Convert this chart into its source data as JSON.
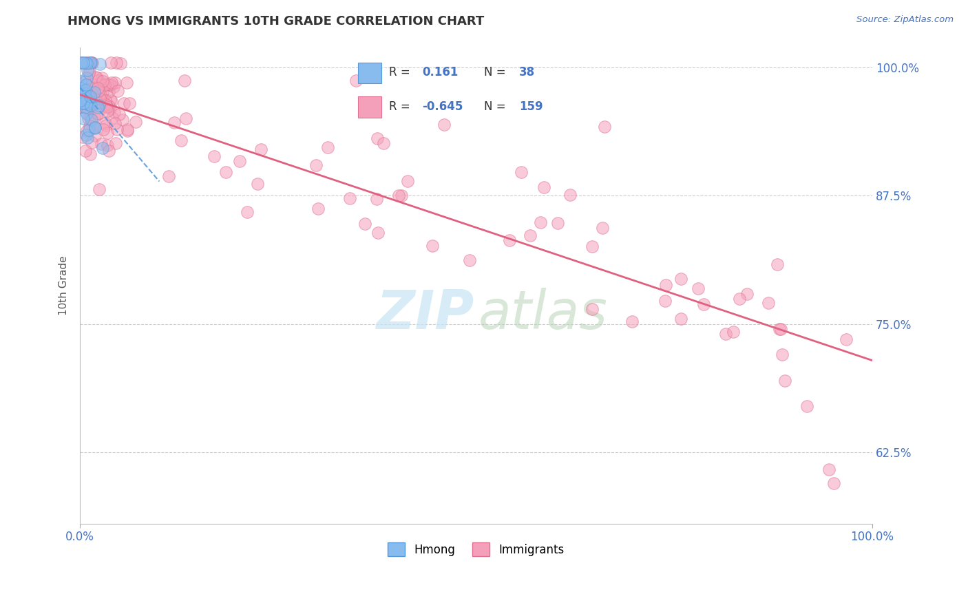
{
  "title": "HMONG VS IMMIGRANTS 10TH GRADE CORRELATION CHART",
  "source": "Source: ZipAtlas.com",
  "ylabel": "10th Grade",
  "ytick_labels": [
    "62.5%",
    "75.0%",
    "87.5%",
    "100.0%"
  ],
  "ytick_values": [
    0.625,
    0.75,
    0.875,
    1.0
  ],
  "hmong_color": "#88BBEE",
  "hmong_edge_color": "#5599DD",
  "immigrants_color": "#F5A0BA",
  "immigrants_edge_color": "#E07090",
  "hmong_line_color": "#5599DD",
  "immigrants_line_color": "#E06080",
  "hmong_R": 0.161,
  "hmong_N": 38,
  "immigrants_R": -0.645,
  "immigrants_N": 159,
  "background_color": "#FFFFFF",
  "grid_color": "#CCCCCC",
  "title_color": "#333333",
  "source_color": "#4472C4",
  "axis_label_color": "#4472C4",
  "legend_number_color": "#4472C4",
  "xlim": [
    0.0,
    1.0
  ],
  "ylim": [
    0.555,
    1.02
  ],
  "watermark_zip_color": "#C8E4F5",
  "watermark_atlas_color": "#B8D4B8"
}
